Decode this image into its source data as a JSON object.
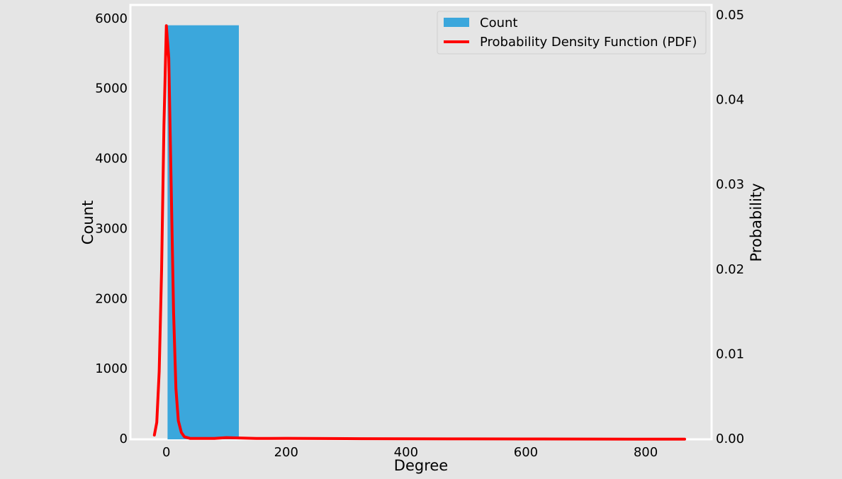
{
  "chart_data": {
    "type": "bar",
    "title": "",
    "xlabel": "Degree",
    "ylabel": "Count",
    "y2label": "Probability",
    "xlim": [
      -60,
      910
    ],
    "ylim": [
      0,
      6200
    ],
    "y2lim": [
      0,
      0.05125
    ],
    "x_ticks": [
      0,
      200,
      400,
      600,
      800
    ],
    "y_ticks": [
      0,
      1000,
      2000,
      3000,
      4000,
      5000,
      6000
    ],
    "y2_ticks": [
      0.0,
      0.01,
      0.02,
      0.03,
      0.04,
      0.05
    ],
    "y2_tick_labels": [
      "0.00",
      "0.01",
      "0.02",
      "0.03",
      "0.04",
      "0.05"
    ],
    "grid": false,
    "legend_position": "top-right",
    "colors": {
      "bar": "#3ba7dc",
      "line": "#ff0000",
      "background": "#e5e5e5",
      "frame": "#ffffff"
    },
    "series": [
      {
        "name": "Count",
        "kind": "histogram",
        "bins": [
          {
            "x0": 2,
            "x1": 121,
            "count": 5910
          },
          {
            "x0": 121,
            "x1": 240,
            "count": 28
          },
          {
            "x0": 240,
            "x1": 359,
            "count": 6
          },
          {
            "x0": 359,
            "x1": 478,
            "count": 3
          },
          {
            "x0": 478,
            "x1": 597,
            "count": 2
          },
          {
            "x0": 597,
            "x1": 716,
            "count": 1
          },
          {
            "x0": 716,
            "x1": 835,
            "count": 1
          }
        ]
      },
      {
        "name": "Probability Density Function (PDF)",
        "kind": "line",
        "axis": "right",
        "points": [
          [
            -20,
            0.0005
          ],
          [
            -16,
            0.002
          ],
          [
            -12,
            0.008
          ],
          [
            -8,
            0.02
          ],
          [
            -4,
            0.037
          ],
          [
            0,
            0.0488
          ],
          [
            4,
            0.045
          ],
          [
            8,
            0.03
          ],
          [
            12,
            0.015
          ],
          [
            16,
            0.006
          ],
          [
            20,
            0.0022
          ],
          [
            25,
            0.0008
          ],
          [
            30,
            0.0003
          ],
          [
            40,
            0.0001
          ],
          [
            60,
            0.0001
          ],
          [
            80,
            0.0001
          ],
          [
            100,
            0.0002
          ],
          [
            150,
            0.0001
          ],
          [
            200,
            0.00012
          ],
          [
            300,
            8e-05
          ],
          [
            400,
            6e-05
          ],
          [
            500,
            5e-05
          ],
          [
            600,
            4e-05
          ],
          [
            700,
            3e-05
          ],
          [
            865,
            2e-05
          ]
        ]
      }
    ]
  }
}
